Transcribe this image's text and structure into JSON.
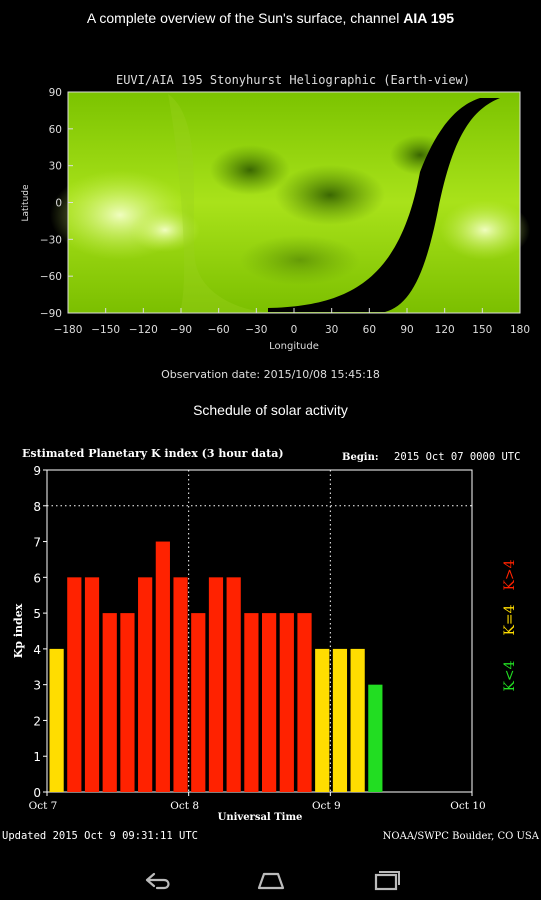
{
  "header": {
    "title_prefix": "A complete overview of the Sun's surface, channel ",
    "title_channel": "AIA 195"
  },
  "sun_map": {
    "title": "EUVI/AIA 195 Stonyhurst Heliographic (Earth-view)",
    "ylabel": "Latitude",
    "xlabel": "Longitude",
    "x_ticks": [
      "−180",
      "−150",
      "−120",
      "−90",
      "−60",
      "−30",
      "0",
      "30",
      "60",
      "90",
      "120",
      "150",
      "180"
    ],
    "y_ticks": [
      "90",
      "60",
      "30",
      "0",
      "−30",
      "−60",
      "−90"
    ],
    "observation_date": "Observation date: 2015/10/08 15:45:18"
  },
  "schedule_heading": "Schedule of solar activity",
  "chart_data": {
    "type": "bar",
    "title": "Estimated Planetary K index (3 hour data)",
    "begin_label": "Begin:",
    "begin_value": "2015 Oct 07 0000 UTC",
    "ylabel": "Kp index",
    "xlabel": "Universal Time",
    "ylim": [
      0,
      9
    ],
    "y_ticks": [
      "0",
      "1",
      "2",
      "3",
      "4",
      "5",
      "6",
      "7",
      "8",
      "9"
    ],
    "x_ticks": [
      "Oct 7",
      "Oct 8",
      "Oct 9",
      "Oct 10"
    ],
    "values": [
      4,
      6,
      6,
      5,
      5,
      6,
      7,
      6,
      5,
      6,
      6,
      5,
      5,
      5,
      5,
      4,
      4,
      4,
      3
    ],
    "total_slots": 24,
    "color_rules": {
      "below4": "#22dd22",
      "equal4": "#ffdd00",
      "above4": "#ff2200"
    },
    "legend": {
      "below": "K<4",
      "equal": "K=4",
      "above": "K>4"
    },
    "updated": "Updated 2015 Oct  9 09:31:11 UTC",
    "source": "NOAA/SWPC Boulder, CO USA"
  },
  "nav": {
    "back": "back-icon",
    "home": "home-icon",
    "recents": "recents-icon"
  }
}
